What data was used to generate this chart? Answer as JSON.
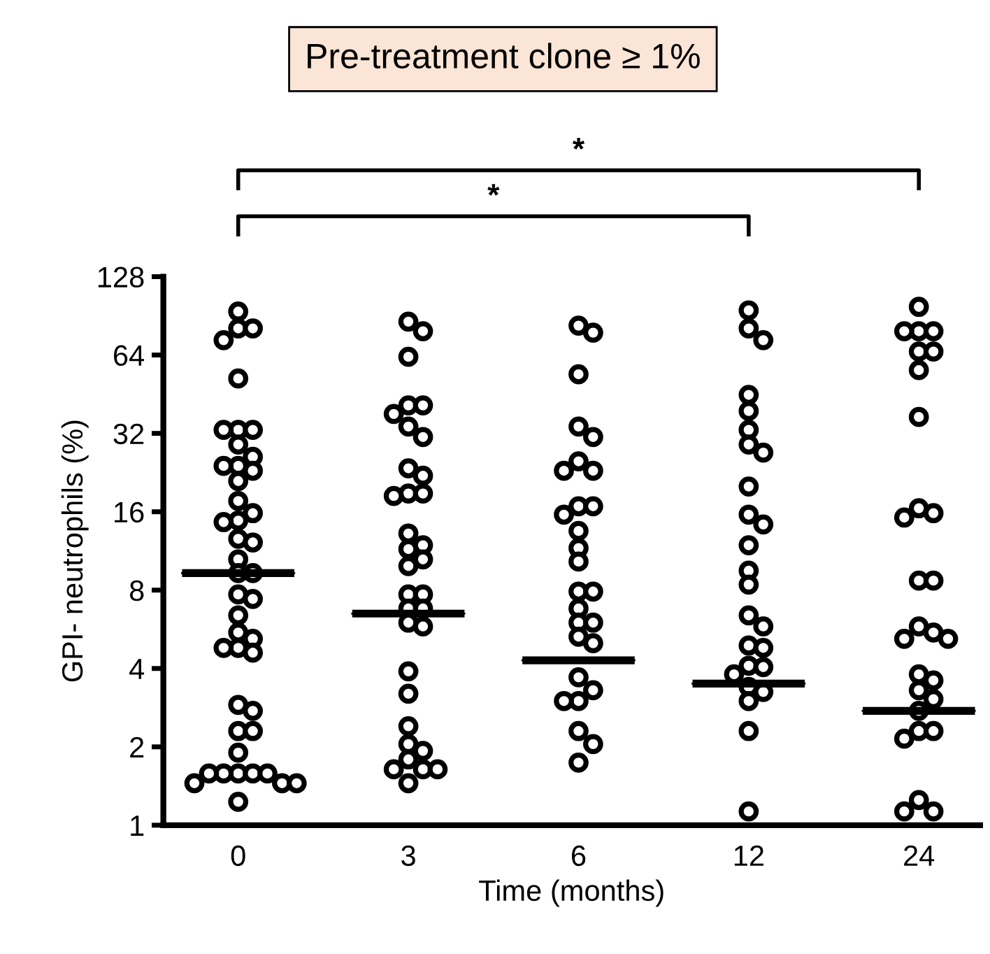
{
  "chart_data": {
    "type": "scatter",
    "title": "Pre-treatment clone ≥ 1%",
    "xlabel": "Time (months)",
    "ylabel": "GPI- neutrophils (%)",
    "categories": [
      "0",
      "3",
      "6",
      "12",
      "24"
    ],
    "log": "y",
    "ylim": [
      1,
      128
    ],
    "yticks": [
      1,
      2,
      4,
      8,
      16,
      32,
      64,
      128
    ],
    "grid": false,
    "marker": "circle",
    "annotations": [
      "*",
      "*"
    ],
    "series": [
      {
        "color": "#000000",
        "x": [
          "0",
          "0",
          "0",
          "0",
          "0",
          "0",
          "0",
          "0",
          "0",
          "0",
          "0",
          "0",
          "0",
          "0",
          "0",
          "0",
          "0",
          "0",
          "0",
          "0",
          "0",
          "0",
          "0",
          "0",
          "0",
          "0",
          "0",
          "0",
          "0",
          "0",
          "0",
          "0",
          "0",
          "0",
          "0",
          "0",
          "0",
          "0",
          "0",
          "0",
          "0",
          "0",
          "0",
          "0",
          "0",
          "3",
          "3",
          "3",
          "3",
          "3",
          "3",
          "3",
          "3",
          "3",
          "3",
          "3",
          "3",
          "3",
          "3",
          "3",
          "3",
          "3",
          "3",
          "3",
          "3",
          "3",
          "3",
          "3",
          "3",
          "3",
          "3",
          "3",
          "3",
          "3",
          "3",
          "3",
          "3",
          "3",
          "3",
          "6",
          "6",
          "6",
          "6",
          "6",
          "6",
          "6",
          "6",
          "6",
          "6",
          "6",
          "6",
          "6",
          "6",
          "6",
          "6",
          "6",
          "6",
          "6",
          "6",
          "6",
          "6",
          "6",
          "6",
          "6",
          "6",
          "6",
          "6",
          "12",
          "12",
          "12",
          "12",
          "12",
          "12",
          "12",
          "12",
          "12",
          "12",
          "12",
          "12",
          "12",
          "12",
          "12",
          "12",
          "12",
          "12",
          "12",
          "12",
          "12",
          "12",
          "12",
          "12",
          "12",
          "12",
          "24",
          "24",
          "24",
          "24",
          "24",
          "24",
          "24",
          "24",
          "24",
          "24",
          "24",
          "24",
          "24",
          "24",
          "24",
          "24",
          "24",
          "24",
          "24",
          "24",
          "24",
          "24",
          "24",
          "24",
          "24",
          "24",
          "24",
          "24"
        ],
        "values": [
          94,
          81,
          81,
          73,
          52,
          33,
          33,
          33,
          29,
          26,
          24,
          24,
          23,
          21,
          17.6,
          15.8,
          14.8,
          14.6,
          12.6,
          12.2,
          10.5,
          9.3,
          9.3,
          7.7,
          7.4,
          6.4,
          5.5,
          5.2,
          4.8,
          4.8,
          4.6,
          2.9,
          2.75,
          2.3,
          2.3,
          1.9,
          1.58,
          1.58,
          1.58,
          1.58,
          1.58,
          1.45,
          1.45,
          1.45,
          1.23,
          86,
          79,
          63,
          41,
          41,
          38,
          34,
          31,
          23.5,
          22,
          18.8,
          18.8,
          18.4,
          13.2,
          11.9,
          11.5,
          10.5,
          9.9,
          7.7,
          7.7,
          6.8,
          6.8,
          6.0,
          5.8,
          3.9,
          3.2,
          2.4,
          2.05,
          1.93,
          1.79,
          1.64,
          1.64,
          1.64,
          1.45,
          83,
          78,
          54,
          34,
          31,
          25,
          23,
          23,
          16.8,
          16.8,
          15.6,
          13.5,
          11.6,
          10.3,
          7.9,
          7.9,
          6.8,
          6.0,
          6.0,
          5.3,
          5.0,
          3.7,
          3.3,
          3.0,
          3.0,
          2.3,
          2.05,
          1.74,
          95,
          81,
          73,
          45,
          39,
          33,
          29,
          27,
          20,
          15.6,
          14.3,
          11.9,
          9.5,
          8.4,
          6.4,
          5.8,
          4.9,
          4.8,
          4.1,
          4.05,
          3.8,
          3.4,
          3.25,
          3.0,
          2.3,
          1.13,
          98,
          79,
          79,
          79,
          66,
          66,
          56,
          37,
          16.5,
          15.8,
          15.2,
          8.7,
          8.7,
          5.8,
          5.5,
          5.2,
          5.2,
          3.8,
          3.6,
          3.3,
          3.05,
          2.75,
          2.3,
          2.3,
          2.15,
          1.25,
          1.13,
          1.13
        ]
      },
      {
        "type": "box",
        "color": "#000000",
        "boxes": [
          {
            "low": 9.3,
            "q1": 9.3,
            "median": 9.3,
            "q3": 9.3,
            "high": 9.3
          },
          {
            "low": 6.5,
            "q1": 6.5,
            "median": 6.5,
            "q3": 6.5,
            "high": 6.5
          },
          {
            "low": 4.3,
            "q1": 4.3,
            "median": 4.3,
            "q3": 4.3,
            "high": 4.3
          },
          {
            "low": 3.5,
            "q1": 3.5,
            "median": 3.5,
            "q3": 3.5,
            "high": 3.5
          },
          {
            "low": 2.75,
            "q1": 2.75,
            "median": 2.75,
            "q3": 2.75,
            "high": 2.75
          }
        ]
      }
    ]
  }
}
